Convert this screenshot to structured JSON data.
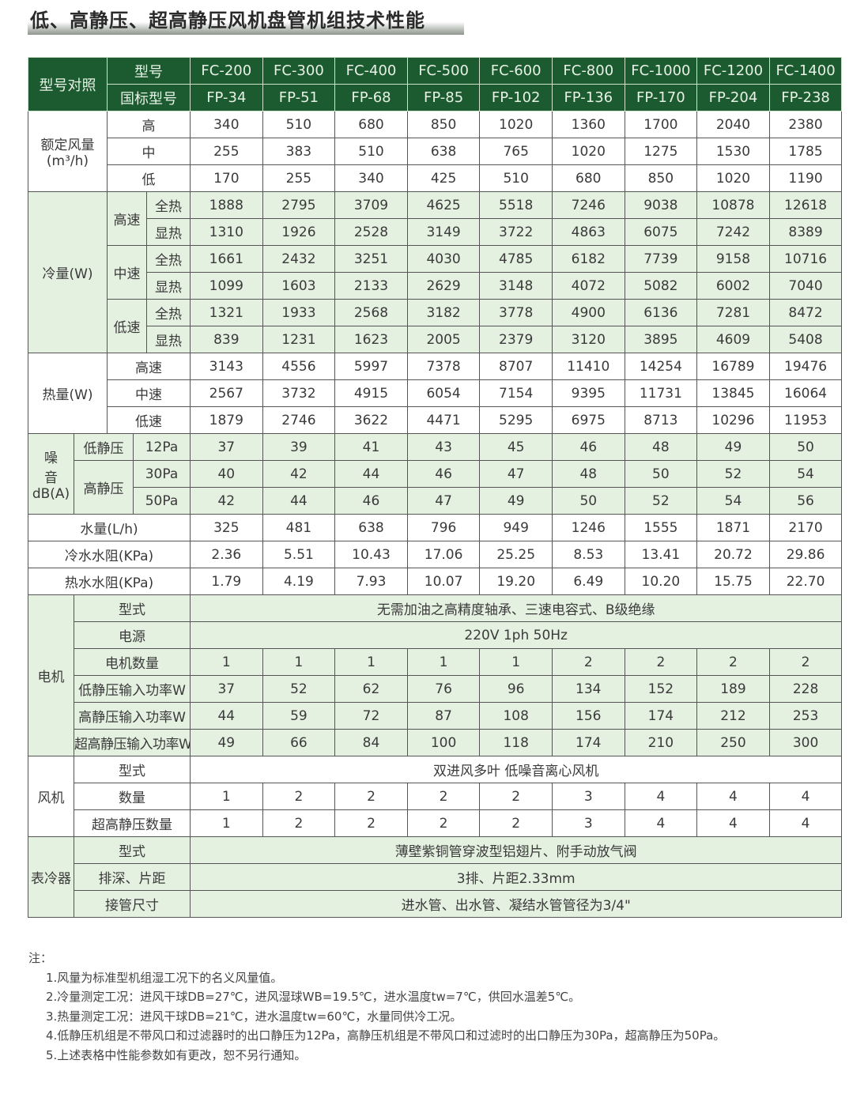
{
  "title": "低、高静压、超高静压风机盘管机组技术性能",
  "colors": {
    "header_green": "#1b5b2f",
    "row_green": "#e4f0e0"
  },
  "header": {
    "group_label": "型号对照",
    "model_label": "型号",
    "national_label": "国标型号",
    "models": [
      "FC-200",
      "FC-300",
      "FC-400",
      "FC-500",
      "FC-600",
      "FC-800",
      "FC-1000",
      "FC-1200",
      "FC-1400"
    ],
    "national": [
      "FP-34",
      "FP-51",
      "FP-68",
      "FP-85",
      "FP-102",
      "FP-136",
      "FP-170",
      "FP-204",
      "FP-238"
    ]
  },
  "airflow": {
    "label": "额定风量",
    "unit": "(m³/h)",
    "rows": [
      {
        "label": "高",
        "values": [
          "340",
          "510",
          "680",
          "850",
          "1020",
          "1360",
          "1700",
          "2040",
          "2380"
        ]
      },
      {
        "label": "中",
        "values": [
          "255",
          "383",
          "510",
          "638",
          "765",
          "1020",
          "1275",
          "1530",
          "1785"
        ]
      },
      {
        "label": "低",
        "values": [
          "170",
          "255",
          "340",
          "425",
          "510",
          "680",
          "850",
          "1020",
          "1190"
        ]
      }
    ]
  },
  "cooling": {
    "label": "冷量(W)",
    "speeds": [
      {
        "label": "高速",
        "rows": [
          {
            "label": "全热",
            "values": [
              "1888",
              "2795",
              "3709",
              "4625",
              "5518",
              "7246",
              "9038",
              "10878",
              "12618"
            ]
          },
          {
            "label": "显热",
            "values": [
              "1310",
              "1926",
              "2528",
              "3149",
              "3722",
              "4863",
              "6075",
              "7242",
              "8389"
            ]
          }
        ]
      },
      {
        "label": "中速",
        "rows": [
          {
            "label": "全热",
            "values": [
              "1661",
              "2432",
              "3251",
              "4030",
              "4785",
              "6182",
              "7739",
              "9158",
              "10716"
            ]
          },
          {
            "label": "显热",
            "values": [
              "1099",
              "1603",
              "2133",
              "2629",
              "3148",
              "4072",
              "5082",
              "6002",
              "7040"
            ]
          }
        ]
      },
      {
        "label": "低速",
        "rows": [
          {
            "label": "全热",
            "values": [
              "1321",
              "1933",
              "2568",
              "3182",
              "3778",
              "4900",
              "6136",
              "7281",
              "8472"
            ]
          },
          {
            "label": "显热",
            "values": [
              "839",
              "1231",
              "1623",
              "2005",
              "2379",
              "3120",
              "3895",
              "4609",
              "5408"
            ]
          }
        ]
      }
    ]
  },
  "heating": {
    "label": "热量(W)",
    "rows": [
      {
        "label": "高速",
        "values": [
          "3143",
          "4556",
          "5997",
          "7378",
          "8707",
          "11410",
          "14254",
          "16789",
          "19476"
        ]
      },
      {
        "label": "中速",
        "values": [
          "2567",
          "3732",
          "4915",
          "6054",
          "7154",
          "9395",
          "11731",
          "13845",
          "16064"
        ]
      },
      {
        "label": "低速",
        "values": [
          "1879",
          "2746",
          "3622",
          "4471",
          "5295",
          "6975",
          "8713",
          "10296",
          "11953"
        ]
      }
    ]
  },
  "noise": {
    "label_1": "噪",
    "label_2": "音",
    "label_3": "dB(A)",
    "low_label": "低静压",
    "high_label": "高静压",
    "rows": [
      {
        "label": "12Pa",
        "values": [
          "37",
          "39",
          "41",
          "43",
          "45",
          "46",
          "48",
          "49",
          "50"
        ]
      },
      {
        "label": "30Pa",
        "values": [
          "40",
          "42",
          "44",
          "46",
          "47",
          "48",
          "50",
          "52",
          "54"
        ]
      },
      {
        "label": "50Pa",
        "values": [
          "42",
          "44",
          "46",
          "47",
          "49",
          "50",
          "52",
          "54",
          "56"
        ]
      }
    ]
  },
  "water": [
    {
      "label": "水量(L/h)",
      "values": [
        "325",
        "481",
        "638",
        "796",
        "949",
        "1246",
        "1555",
        "1871",
        "2170"
      ]
    },
    {
      "label": "冷水水阻(KPa)",
      "values": [
        "2.36",
        "5.51",
        "10.43",
        "17.06",
        "25.25",
        "8.53",
        "13.41",
        "20.72",
        "29.86"
      ]
    },
    {
      "label": "热水水阻(KPa)",
      "values": [
        "1.79",
        "4.19",
        "7.93",
        "10.07",
        "19.20",
        "6.49",
        "10.20",
        "15.75",
        "22.70"
      ]
    }
  ],
  "motor": {
    "label": "电机",
    "type_label": "型式",
    "type_value": "无需加油之高精度轴承、三速电容式、B级绝缘",
    "power_label": "电源",
    "power_value": "220V 1ph 50Hz",
    "rows": [
      {
        "label": "电机数量",
        "values": [
          "1",
          "1",
          "1",
          "1",
          "1",
          "2",
          "2",
          "2",
          "2"
        ]
      },
      {
        "label": "低静压输入功率W",
        "values": [
          "37",
          "52",
          "62",
          "76",
          "96",
          "134",
          "152",
          "189",
          "228"
        ]
      },
      {
        "label": "高静压输入功率W",
        "values": [
          "44",
          "59",
          "72",
          "87",
          "108",
          "156",
          "174",
          "212",
          "253"
        ]
      },
      {
        "label": "超高静压输入功率W",
        "values": [
          "49",
          "66",
          "84",
          "100",
          "118",
          "174",
          "210",
          "250",
          "300"
        ]
      }
    ]
  },
  "fan": {
    "label": "风机",
    "type_label": "型式",
    "type_value": "双进风多叶 低噪音离心风机",
    "rows": [
      {
        "label": "数量",
        "values": [
          "1",
          "2",
          "2",
          "2",
          "2",
          "3",
          "4",
          "4",
          "4"
        ]
      },
      {
        "label": "超高静压数量",
        "values": [
          "1",
          "2",
          "2",
          "2",
          "2",
          "3",
          "4",
          "4",
          "4"
        ]
      }
    ]
  },
  "coil": {
    "label": "表冷器",
    "rows": [
      {
        "label": "型式",
        "value": "薄壁紫铜管穿波型铝翅片、附手动放气阀"
      },
      {
        "label": "排深、片距",
        "value": "3排、片距2.33mm"
      },
      {
        "label": "接管尺寸",
        "value": "进水管、出水管、凝结水管管径为3/4\""
      }
    ]
  },
  "notes": {
    "heading": "注：",
    "items": [
      "1.风量为标准型机组湿工况下的名义风量值。",
      "2.冷量测定工况：进风干球DB=27℃，进风湿球WB=19.5℃，进水温度tw=7℃，供回水温差5℃。",
      "3.热量测定工况：进风干球DB=21℃，进水温度tw=60℃，水量同供冷工况。",
      "4.低静压机组是不带风口和过滤器时的出口静压为12Pa，高静压机组是不带风口和过滤时的出口静压为30Pa，超高静压为50Pa。",
      "5.上述表格中性能参数如有更改，恕不另行通知。"
    ]
  }
}
